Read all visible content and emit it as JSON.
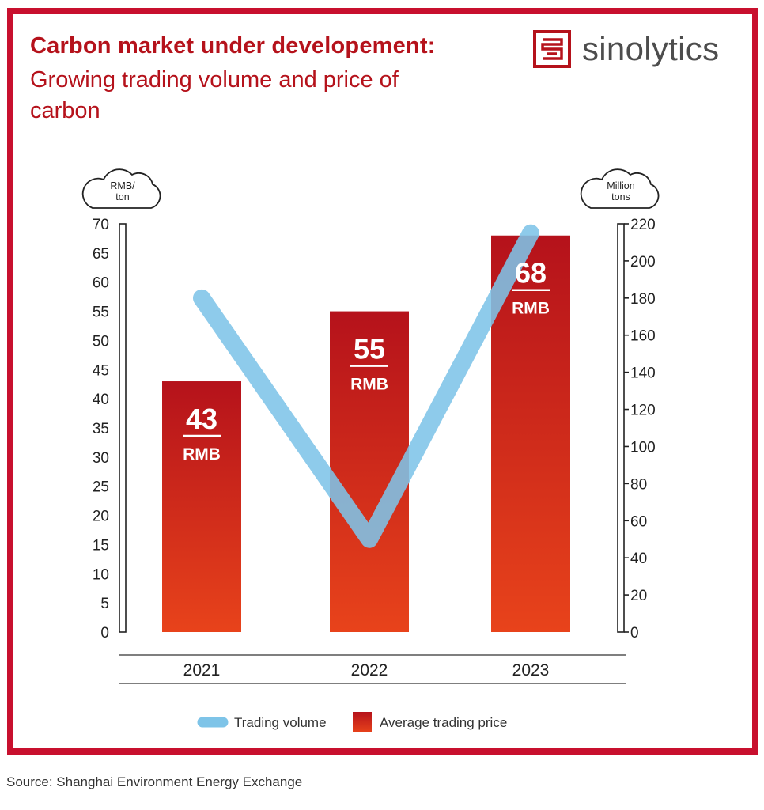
{
  "header": {
    "title_line1": "Carbon market under developement:",
    "title_line2": "Growing trading volume and price of carbon"
  },
  "brand": {
    "name": "sinolytics",
    "logo_icon": "sinolytics-logo-icon"
  },
  "footer": {
    "source": "Source: Shanghai Environment Energy Exchange"
  },
  "chart_data": {
    "type": "bar",
    "categories": [
      "2021",
      "2022",
      "2023"
    ],
    "series": [
      {
        "name": "Average trading price",
        "kind": "bar",
        "axis": "left",
        "values": [
          43,
          55,
          68
        ],
        "labels": [
          {
            "value": "43",
            "unit": "RMB"
          },
          {
            "value": "55",
            "unit": "RMB"
          },
          {
            "value": "68",
            "unit": "RMB"
          }
        ],
        "color": "#c8102e"
      },
      {
        "name": "Trading volume",
        "kind": "line",
        "axis": "right",
        "values": [
          180,
          50,
          215
        ],
        "color": "#7ec4e8"
      }
    ],
    "y_left": {
      "unit_label": [
        "RMB/",
        "ton"
      ],
      "range": [
        0,
        70
      ],
      "ticks": [
        0,
        5,
        10,
        15,
        20,
        25,
        30,
        35,
        40,
        45,
        50,
        55,
        60,
        65,
        70
      ]
    },
    "y_right": {
      "unit_label": [
        "Million",
        "tons"
      ],
      "range": [
        0,
        220
      ],
      "ticks": [
        0,
        20,
        40,
        60,
        80,
        100,
        120,
        140,
        160,
        180,
        200,
        220
      ]
    },
    "legend": {
      "placement": "bottom",
      "items": [
        {
          "label": "Trading volume",
          "type": "line",
          "color": "#7ec4e8"
        },
        {
          "label": "Average trading price",
          "type": "bar",
          "color": "#c8102e"
        }
      ]
    },
    "colors": {
      "bar_top": "#b5121b",
      "bar_bottom": "#e8431b",
      "line": "#7ec4e8",
      "frame": "#c8102e"
    }
  }
}
